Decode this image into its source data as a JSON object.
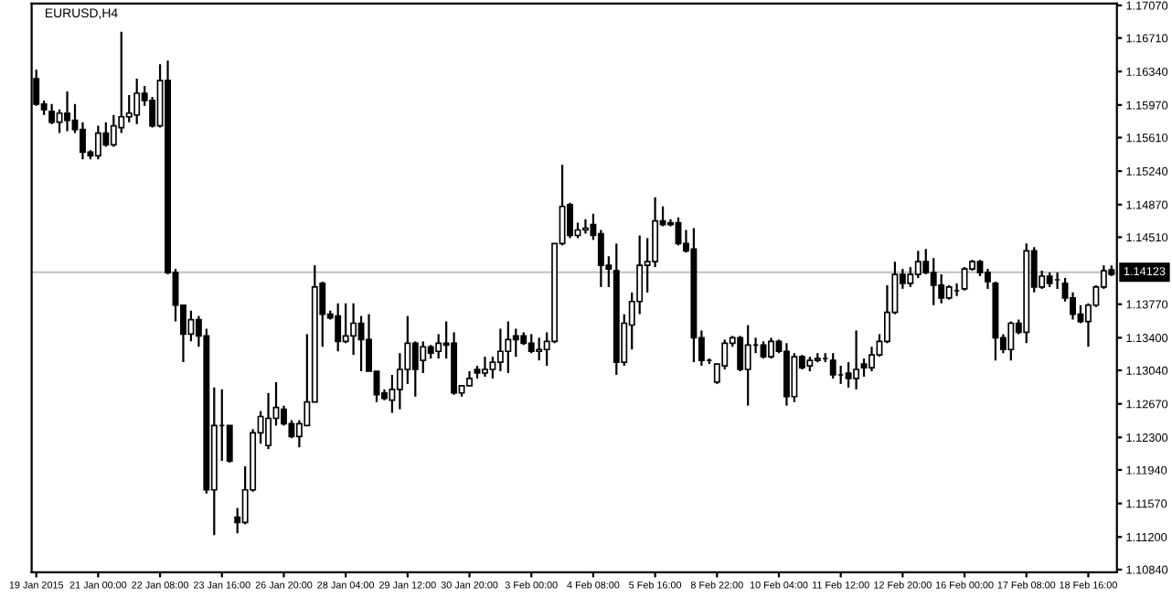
{
  "chart_data": {
    "type": "candlestick",
    "title": "EURUSD,H4",
    "categories": [
      "19 Jan 2015",
      null,
      null,
      null,
      null,
      null,
      null,
      null,
      "21 Jan 00:00",
      null,
      null,
      null,
      null,
      null,
      null,
      null,
      "22 Jan 08:00",
      null,
      null,
      null,
      null,
      null,
      null,
      null,
      "23 Jan 16:00",
      null,
      null,
      null,
      null,
      null,
      null,
      null,
      "26 Jan 20:00",
      null,
      null,
      null,
      null,
      null,
      null,
      null,
      "28 Jan 04:00",
      null,
      null,
      null,
      null,
      null,
      null,
      null,
      "29 Jan 12:00",
      null,
      null,
      null,
      null,
      null,
      null,
      null,
      "30 Jan 20:00",
      null,
      null,
      null,
      null,
      null,
      null,
      null,
      "3 Feb 00:00",
      null,
      null,
      null,
      null,
      null,
      null,
      null,
      "4 Feb 08:00",
      null,
      null,
      null,
      null,
      null,
      null,
      null,
      "5 Feb 16:00",
      null,
      null,
      null,
      null,
      null,
      null,
      null,
      "8 Feb 22:00",
      null,
      null,
      null,
      null,
      null,
      null,
      null,
      "10 Feb 04:00",
      null,
      null,
      null,
      null,
      null,
      null,
      null,
      "11 Feb 12:00",
      null,
      null,
      null,
      null,
      null,
      null,
      null,
      "12 Feb 20:00",
      null,
      null,
      null,
      null,
      null,
      null,
      null,
      "16 Feb 00:00",
      null,
      null,
      null,
      null,
      null,
      null,
      null,
      "17 Feb 08:00",
      null,
      null,
      null,
      null,
      null,
      null,
      null,
      "18 Feb 16:00",
      null,
      null,
      null
    ],
    "ohlc": [
      [
        1.1626,
        1.1636,
        1.1596,
        1.1598
      ],
      [
        1.1598,
        1.1602,
        1.1586,
        1.1592
      ],
      [
        1.159,
        1.1598,
        1.1576,
        1.1578
      ],
      [
        1.1578,
        1.1592,
        1.1566,
        1.1588
      ],
      [
        1.1588,
        1.1612,
        1.1568,
        1.158
      ],
      [
        1.158,
        1.1598,
        1.1566,
        1.157
      ],
      [
        1.157,
        1.1578,
        1.1537,
        1.1545
      ],
      [
        1.1545,
        1.1547,
        1.1537,
        1.1541
      ],
      [
        1.1541,
        1.1574,
        1.1537,
        1.1566
      ],
      [
        1.1566,
        1.1578,
        1.1551,
        1.1553
      ],
      [
        1.1553,
        1.1586,
        1.1551,
        1.1574
      ],
      [
        1.1572,
        1.1678,
        1.1566,
        1.1584
      ],
      [
        1.1584,
        1.1608,
        1.1578,
        1.1588
      ],
      [
        1.1586,
        1.1626,
        1.1576,
        1.161
      ],
      [
        1.161,
        1.1618,
        1.1596,
        1.1602
      ],
      [
        1.1602,
        1.1606,
        1.1572,
        1.1574
      ],
      [
        1.1574,
        1.1642,
        1.1572,
        1.1624
      ],
      [
        1.1624,
        1.1646,
        1.141,
        1.1412
      ],
      [
        1.1412,
        1.1416,
        1.1358,
        1.1376
      ],
      [
        1.1376,
        1.1376,
        1.1313,
        1.1344
      ],
      [
        1.1344,
        1.137,
        1.1336,
        1.136
      ],
      [
        1.136,
        1.1364,
        1.133,
        1.1342
      ],
      [
        1.1342,
        1.135,
        1.1168,
        1.1172
      ],
      [
        1.1172,
        1.1285,
        1.1122,
        1.1243
      ],
      [
        1.1243,
        1.1283,
        1.1204,
        1.1243
      ],
      [
        1.1243,
        1.1243,
        1.1202,
        1.1204
      ],
      [
        1.1142,
        1.1152,
        1.1124,
        1.1136
      ],
      [
        1.1136,
        1.1198,
        1.1134,
        1.1172
      ],
      [
        1.1172,
        1.1239,
        1.117,
        1.1235
      ],
      [
        1.1235,
        1.1259,
        1.1223,
        1.1253
      ],
      [
        1.1221,
        1.1279,
        1.1217,
        1.1251
      ],
      [
        1.1251,
        1.1291,
        1.1243,
        1.1263
      ],
      [
        1.1261,
        1.1265,
        1.1243,
        1.1245
      ],
      [
        1.1245,
        1.1249,
        1.1229,
        1.1231
      ],
      [
        1.1231,
        1.1249,
        1.1219,
        1.1245
      ],
      [
        1.1243,
        1.1344,
        1.1243,
        1.1269
      ],
      [
        1.1269,
        1.142,
        1.1269,
        1.1396
      ],
      [
        1.14,
        1.1402,
        1.133,
        1.1366
      ],
      [
        1.1366,
        1.137,
        1.136,
        1.1362
      ],
      [
        1.1364,
        1.1378,
        1.1325,
        1.1336
      ],
      [
        1.1336,
        1.1378,
        1.1334,
        1.1342
      ],
      [
        1.1342,
        1.1378,
        1.1321,
        1.1356
      ],
      [
        1.1356,
        1.1364,
        1.1303,
        1.1338
      ],
      [
        1.1338,
        1.1366,
        1.1303,
        1.1303
      ],
      [
        1.1303,
        1.1303,
        1.1269,
        1.1277
      ],
      [
        1.1279,
        1.1283,
        1.1271,
        1.1273
      ],
      [
        1.1271,
        1.1299,
        1.1257,
        1.1283
      ],
      [
        1.1283,
        1.1323,
        1.1261,
        1.1305
      ],
      [
        1.1305,
        1.1364,
        1.1289,
        1.1334
      ],
      [
        1.1334,
        1.1336,
        1.1275,
        1.1305
      ],
      [
        1.1315,
        1.1336,
        1.1301,
        1.133
      ],
      [
        1.133,
        1.1332,
        1.1317,
        1.1323
      ],
      [
        1.1325,
        1.1344,
        1.1317,
        1.1334
      ],
      [
        1.1334,
        1.1358,
        1.1317,
        1.1332
      ],
      [
        1.1334,
        1.1346,
        1.1277,
        1.1279
      ],
      [
        1.1279,
        1.1287,
        1.1275,
        1.1287
      ],
      [
        1.1287,
        1.1303,
        1.1287,
        1.1295
      ],
      [
        1.1305,
        1.1309,
        1.1295,
        1.1301
      ],
      [
        1.1301,
        1.1319,
        1.1297,
        1.1305
      ],
      [
        1.1305,
        1.1319,
        1.1295,
        1.1313
      ],
      [
        1.1313,
        1.135,
        1.1303,
        1.1325
      ],
      [
        1.1325,
        1.1358,
        1.1301,
        1.1338
      ],
      [
        1.1342,
        1.135,
        1.1319,
        1.1338
      ],
      [
        1.1342,
        1.1346,
        1.1332,
        1.1334
      ],
      [
        1.1334,
        1.1344,
        1.1323,
        1.1325
      ],
      [
        1.1325,
        1.134,
        1.1315,
        1.1327
      ],
      [
        1.1327,
        1.1346,
        1.1309,
        1.1336
      ],
      [
        1.1336,
        1.1444,
        1.1334,
        1.1444
      ],
      [
        1.1444,
        1.1531,
        1.1442,
        1.1485
      ],
      [
        1.1487,
        1.1489,
        1.145,
        1.1453
      ],
      [
        1.1453,
        1.1467,
        1.145,
        1.1459
      ],
      [
        1.1459,
        1.1471,
        1.1455,
        1.1461
      ],
      [
        1.1465,
        1.1477,
        1.1448,
        1.1453
      ],
      [
        1.1455,
        1.1459,
        1.1396,
        1.142
      ],
      [
        1.142,
        1.143,
        1.1396,
        1.1416
      ],
      [
        1.1414,
        1.1444,
        1.1299,
        1.1313
      ],
      [
        1.1313,
        1.1366,
        1.1309,
        1.1356
      ],
      [
        1.1354,
        1.139,
        1.1327,
        1.138
      ],
      [
        1.138,
        1.1453,
        1.1366,
        1.142
      ],
      [
        1.142,
        1.145,
        1.139,
        1.1424
      ],
      [
        1.1424,
        1.1495,
        1.1418,
        1.1469
      ],
      [
        1.1469,
        1.1485,
        1.1463,
        1.1465
      ],
      [
        1.1467,
        1.1471,
        1.1463,
        1.1465
      ],
      [
        1.1467,
        1.1473,
        1.1442,
        1.1444
      ],
      [
        1.1444,
        1.1459,
        1.1434,
        1.1436
      ],
      [
        1.1438,
        1.1461,
        1.1313,
        1.134
      ],
      [
        1.134,
        1.1348,
        1.1309,
        1.1315
      ],
      [
        1.1315,
        1.1317,
        1.1311,
        1.1315
      ],
      [
        1.1291,
        1.1311,
        1.1289,
        1.1311
      ],
      [
        1.1309,
        1.1338,
        1.1305,
        1.1334
      ],
      [
        1.1334,
        1.1342,
        1.133,
        1.134
      ],
      [
        1.134,
        1.1342,
        1.1303,
        1.1305
      ],
      [
        1.1305,
        1.1354,
        1.1265,
        1.1332
      ],
      [
        1.1332,
        1.134,
        1.1323,
        1.1332
      ],
      [
        1.1332,
        1.1336,
        1.1317,
        1.1319
      ],
      [
        1.1319,
        1.134,
        1.1317,
        1.1336
      ],
      [
        1.1336,
        1.1338,
        1.1323,
        1.1325
      ],
      [
        1.1325,
        1.1334,
        1.1265,
        1.1275
      ],
      [
        1.1275,
        1.1323,
        1.1269,
        1.1319
      ],
      [
        1.1319,
        1.1321,
        1.1305,
        1.1307
      ],
      [
        1.1309,
        1.1319,
        1.1303,
        1.1315
      ],
      [
        1.1315,
        1.1323,
        1.1313,
        1.1317
      ],
      [
        1.1317,
        1.1323,
        1.1313,
        1.1317
      ],
      [
        1.1315,
        1.1323,
        1.1295,
        1.1299
      ],
      [
        1.1299,
        1.1309,
        1.1289,
        1.1299
      ],
      [
        1.1301,
        1.1313,
        1.1285,
        1.1295
      ],
      [
        1.1295,
        1.1348,
        1.1283,
        1.1305
      ],
      [
        1.1311,
        1.1317,
        1.1297,
        1.1307
      ],
      [
        1.1307,
        1.133,
        1.1303,
        1.1321
      ],
      [
        1.1321,
        1.1344,
        1.1319,
        1.1336
      ],
      [
        1.1336,
        1.1398,
        1.1334,
        1.1368
      ],
      [
        1.1368,
        1.1424,
        1.1366,
        1.141
      ],
      [
        1.141,
        1.1416,
        1.1394,
        1.14
      ],
      [
        1.14,
        1.1418,
        1.1396,
        1.141
      ],
      [
        1.141,
        1.1436,
        1.1406,
        1.1424
      ],
      [
        1.1424,
        1.1438,
        1.141,
        1.1412
      ],
      [
        1.1412,
        1.1428,
        1.1376,
        1.1398
      ],
      [
        1.1398,
        1.141,
        1.1378,
        1.1384
      ],
      [
        1.1384,
        1.1398,
        1.1382,
        1.1396
      ],
      [
        1.1392,
        1.14,
        1.1386,
        1.1392
      ],
      [
        1.1394,
        1.1418,
        1.1392,
        1.1416
      ],
      [
        1.1416,
        1.1426,
        1.1414,
        1.1424
      ],
      [
        1.1424,
        1.1426,
        1.1408,
        1.1412
      ],
      [
        1.1412,
        1.1416,
        1.1394,
        1.1402
      ],
      [
        1.14,
        1.1402,
        1.1315,
        1.134
      ],
      [
        1.134,
        1.1344,
        1.1323,
        1.1327
      ],
      [
        1.1327,
        1.1358,
        1.1315,
        1.1356
      ],
      [
        1.1356,
        1.136,
        1.1344,
        1.1346
      ],
      [
        1.1346,
        1.1444,
        1.1334,
        1.1436
      ],
      [
        1.1436,
        1.144,
        1.139,
        1.1396
      ],
      [
        1.1396,
        1.1414,
        1.1394,
        1.1408
      ],
      [
        1.1408,
        1.1412,
        1.1396,
        1.14
      ],
      [
        1.1404,
        1.1412,
        1.1394,
        1.1404
      ],
      [
        1.14,
        1.1406,
        1.138,
        1.1384
      ],
      [
        1.1384,
        1.139,
        1.136,
        1.1366
      ],
      [
        1.1366,
        1.1376,
        1.1356,
        1.1358
      ],
      [
        1.1358,
        1.1378,
        1.133,
        1.1376
      ],
      [
        1.1376,
        1.1398,
        1.1374,
        1.1396
      ],
      [
        1.1396,
        1.142,
        1.1394,
        1.1414
      ],
      [
        1.1415,
        1.142,
        1.1408,
        1.141
      ]
    ],
    "ylim": [
      1.1081,
      1.1709
    ],
    "yticks": [
      {
        "value": 1.1707,
        "label": "1.17070"
      },
      {
        "value": 1.1671,
        "label": "1.16710"
      },
      {
        "value": 1.1634,
        "label": "1.16340"
      },
      {
        "value": 1.1597,
        "label": "1.15970"
      },
      {
        "value": 1.1561,
        "label": "1.15610"
      },
      {
        "value": 1.1524,
        "label": "1.15240"
      },
      {
        "value": 1.1487,
        "label": "1.14870"
      },
      {
        "value": 1.1451,
        "label": "1.14510"
      },
      {
        "value": 1.1377,
        "label": "1.13770"
      },
      {
        "value": 1.134,
        "label": "1.13400"
      },
      {
        "value": 1.1304,
        "label": "1.13040"
      },
      {
        "value": 1.1267,
        "label": "1.12670"
      },
      {
        "value": 1.123,
        "label": "1.12300"
      },
      {
        "value": 1.1194,
        "label": "1.11940"
      },
      {
        "value": 1.1157,
        "label": "1.11570"
      },
      {
        "value": 1.112,
        "label": "1.11200"
      },
      {
        "value": 1.1084,
        "label": "1.10840"
      }
    ],
    "ref_lines": [
      {
        "axis": "y",
        "value": 1.14123,
        "label": "1.14123",
        "color": "#c0c0c0"
      }
    ]
  }
}
